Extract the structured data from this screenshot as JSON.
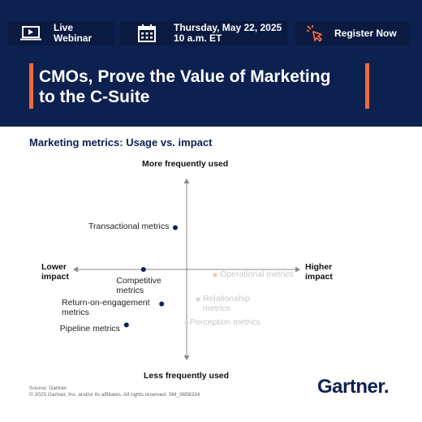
{
  "banner": {
    "live_line1": "Live",
    "live_line2": "Webinar",
    "date_line1": "Thursday, May 22, 2025",
    "date_line2": "10 a.m. ET",
    "register_label": "Register Now",
    "accent_color": "#f26a3d",
    "background_color": "#0d2150",
    "icons": [
      "monitor-icon",
      "calendar-icon",
      "cursor-click-icon"
    ]
  },
  "headline": {
    "line1": "CMOs, Prove the Value of Marketing",
    "line2": "to the C-Suite"
  },
  "chart_title": "Marketing metrics: Usage vs. impact",
  "chart_data": {
    "type": "scatter",
    "title": "Marketing metrics: Usage vs. impact",
    "axes": {
      "top": "More frequently used",
      "bottom": "Less frequently used",
      "left": [
        "Lower",
        "impact"
      ],
      "right": [
        "Higher",
        "impact"
      ]
    },
    "points": [
      {
        "label": [
          "Transactional metrics"
        ],
        "x": -0.1,
        "y": 0.46,
        "faded": false
      },
      {
        "label": [
          "Competitive",
          "metrics"
        ],
        "x": -0.38,
        "y": 0.0,
        "faded": false
      },
      {
        "label": [
          "Operational metrics"
        ],
        "x": 0.25,
        "y": -0.06,
        "faded": true
      },
      {
        "label": [
          "Relationship",
          "metrics"
        ],
        "x": 0.1,
        "y": -0.33,
        "faded": true
      },
      {
        "label": [
          "Return-on-engagement",
          "metrics"
        ],
        "x": -0.22,
        "y": -0.38,
        "faded": false
      },
      {
        "label": [
          "Perception metrics"
        ],
        "x": 0.0,
        "y": -0.59,
        "faded": true
      },
      {
        "label": [
          "Pipeline metrics"
        ],
        "x": -0.53,
        "y": -0.61,
        "faded": false
      }
    ]
  },
  "footer": {
    "source": "Source: Gartner",
    "copyright": "© 2025 Gartner, Inc. and/or its affiliates. All rights reserved. SM_3658334"
  },
  "logo_text": "Gartner",
  "logo_dot": "."
}
